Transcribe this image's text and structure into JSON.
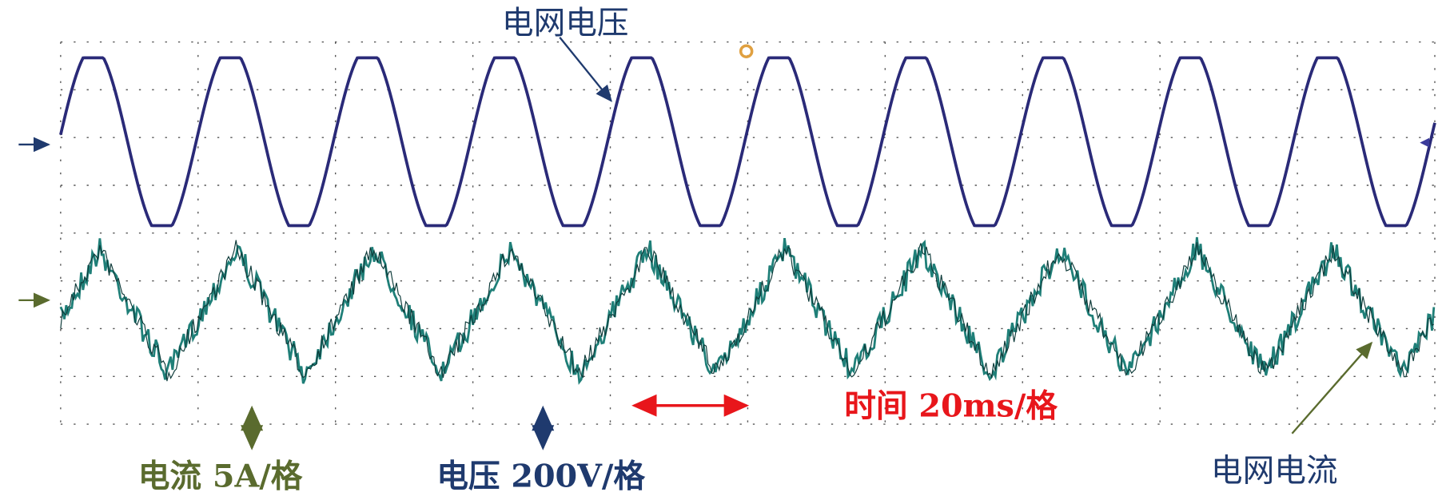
{
  "labels": {
    "voltage_trace": "电网电压",
    "current_scale": "电流 5A/格",
    "voltage_scale": "电压 200V/格",
    "time_scale": "时间 20ms/格",
    "current_trace": "电网电流"
  }
}
